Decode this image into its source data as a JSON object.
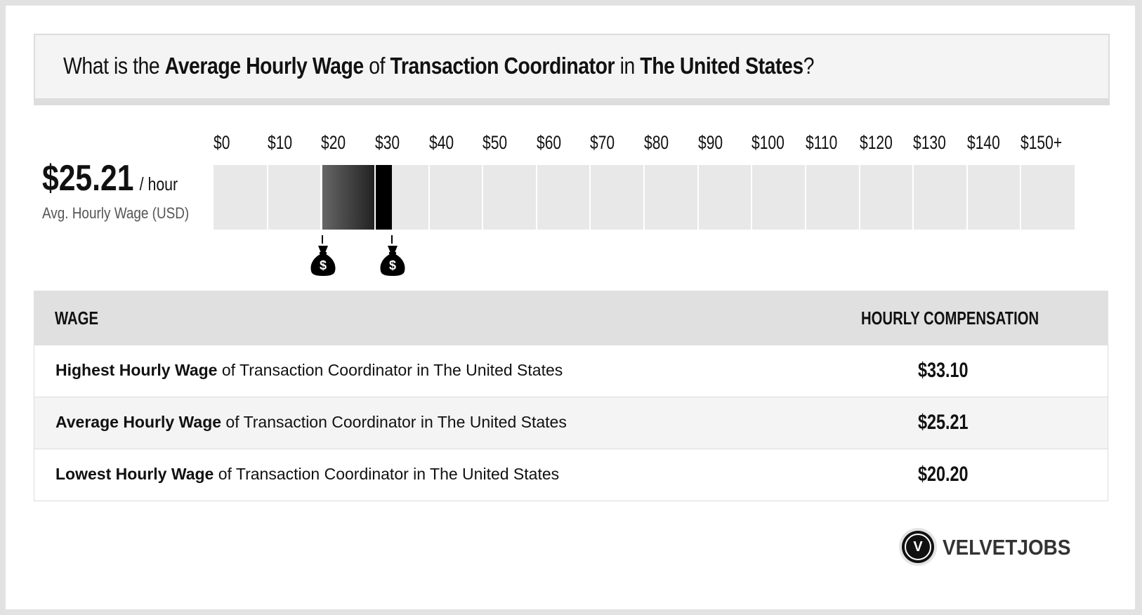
{
  "header": {
    "parts": [
      {
        "text": "What is the ",
        "bold": false
      },
      {
        "text": "Average Hourly Wage",
        "bold": true
      },
      {
        "text": " of ",
        "bold": false
      },
      {
        "text": "Transaction Coordinator",
        "bold": true
      },
      {
        "text": " in ",
        "bold": false
      },
      {
        "text": "The United States",
        "bold": true
      },
      {
        "text": "?",
        "bold": false
      }
    ]
  },
  "summary": {
    "amount": "$25.21",
    "unit": "/ hour",
    "caption": "Avg. Hourly Wage (USD)"
  },
  "chart_data": {
    "type": "bar",
    "title": "",
    "tick_labels": [
      "$0",
      "$10",
      "$20",
      "$30",
      "$40",
      "$50",
      "$60",
      "$70",
      "$80",
      "$90",
      "$100",
      "$110",
      "$120",
      "$130",
      "$140",
      "$150+"
    ],
    "xlim": [
      0,
      150
    ],
    "range_low": 20.2,
    "range_average": 25.21,
    "range_high": 33.1,
    "markers": [
      20.2,
      33.1
    ],
    "colors": {
      "track": "#e8e8e8",
      "gradient_start": "#666666",
      "gradient_end": "#222222",
      "high_segment": "#000000"
    }
  },
  "table": {
    "headers": {
      "wage": "WAGE",
      "compensation": "HOURLY COMPENSATION"
    },
    "rows": [
      {
        "bold": "Highest Hourly Wage",
        "rest": " of Transaction Coordinator in The United States",
        "value": "$33.10"
      },
      {
        "bold": "Average Hourly Wage",
        "rest": " of Transaction Coordinator in The United States",
        "value": "$25.21"
      },
      {
        "bold": "Lowest Hourly Wage",
        "rest": " of Transaction Coordinator in The United States",
        "value": "$20.20"
      }
    ]
  },
  "logo": {
    "letter": "V",
    "text": "VELVETJOBS"
  },
  "icons": {
    "marker": "money-bag-icon",
    "logo": "velvetjobs-logo-icon"
  }
}
